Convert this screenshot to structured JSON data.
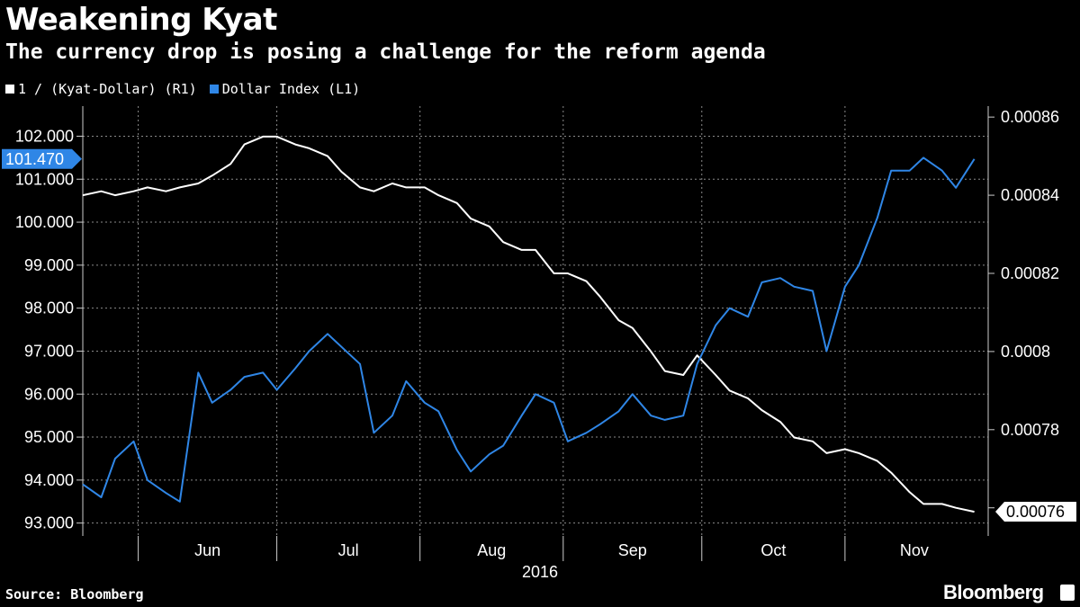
{
  "header": {
    "title": "Weakening Kyat",
    "subtitle": "The currency drop is posing a challenge for the reform agenda"
  },
  "footer": {
    "source": "Source: Bloomberg",
    "brand": "Bloomberg"
  },
  "colors": {
    "background": "#000000",
    "kyat_series": "#ffffff",
    "dollar_series": "#2f86e6",
    "grid": "#777777"
  },
  "chart_data": {
    "type": "line",
    "x_label": "2016",
    "x_axis": {
      "year_label": "2016",
      "month_labels": [
        "Jun",
        "Jul",
        "Aug",
        "Sep",
        "Oct",
        "Nov"
      ],
      "range": [
        "2016-05-20",
        "2016-12-02"
      ]
    },
    "left_axis": {
      "series": "Dollar Index (L1)",
      "ylim": [
        92.7,
        102.7
      ],
      "ticks": [
        "102.000",
        "101.000",
        "100.000",
        "99.000",
        "98.000",
        "97.000",
        "96.000",
        "95.000",
        "94.000",
        "93.000"
      ],
      "last_value_label": "101.470"
    },
    "right_axis": {
      "series": "1 / (Kyat-Dollar) (R1)",
      "ylim": [
        0.0007528,
        0.0008628
      ],
      "ticks": [
        "0.00086",
        "0.00084",
        "0.00082",
        "0.0008",
        "0.00078",
        "0.00076"
      ],
      "last_value_label": "0.00076"
    },
    "legend": [
      {
        "label": "1 / (Kyat-Dollar) (R1)",
        "color": "#ffffff"
      },
      {
        "label": "Dollar Index (L1)",
        "color": "#2f86e6"
      }
    ],
    "series": [
      {
        "name": "1 / (Kyat-Dollar) (R1)",
        "axis": "right",
        "color": "#ffffff",
        "points": [
          [
            "2016-05-20",
            0.00084
          ],
          [
            "2016-05-24",
            0.000841
          ],
          [
            "2016-05-27",
            0.00084
          ],
          [
            "2016-05-31",
            0.000841
          ],
          [
            "2016-06-03",
            0.000842
          ],
          [
            "2016-06-07",
            0.000841
          ],
          [
            "2016-06-10",
            0.000842
          ],
          [
            "2016-06-14",
            0.000843
          ],
          [
            "2016-06-17",
            0.000845
          ],
          [
            "2016-06-21",
            0.000848
          ],
          [
            "2016-06-24",
            0.000853
          ],
          [
            "2016-06-28",
            0.000855
          ],
          [
            "2016-07-01",
            0.000855
          ],
          [
            "2016-07-05",
            0.000853
          ],
          [
            "2016-07-08",
            0.000852
          ],
          [
            "2016-07-12",
            0.00085
          ],
          [
            "2016-07-15",
            0.000846
          ],
          [
            "2016-07-19",
            0.000842
          ],
          [
            "2016-07-22",
            0.000841
          ],
          [
            "2016-07-26",
            0.000843
          ],
          [
            "2016-07-29",
            0.000842
          ],
          [
            "2016-08-02",
            0.000842
          ],
          [
            "2016-08-05",
            0.00084
          ],
          [
            "2016-08-09",
            0.000838
          ],
          [
            "2016-08-12",
            0.000834
          ],
          [
            "2016-08-16",
            0.000832
          ],
          [
            "2016-08-19",
            0.000828
          ],
          [
            "2016-08-23",
            0.000826
          ],
          [
            "2016-08-26",
            0.000826
          ],
          [
            "2016-08-30",
            0.00082
          ],
          [
            "2016-09-02",
            0.00082
          ],
          [
            "2016-09-06",
            0.000818
          ],
          [
            "2016-09-09",
            0.000814
          ],
          [
            "2016-09-13",
            0.000808
          ],
          [
            "2016-09-16",
            0.000806
          ],
          [
            "2016-09-20",
            0.0008
          ],
          [
            "2016-09-23",
            0.000795
          ],
          [
            "2016-09-27",
            0.000794
          ],
          [
            "2016-09-30",
            0.000799
          ],
          [
            "2016-10-04",
            0.000794
          ],
          [
            "2016-10-07",
            0.00079
          ],
          [
            "2016-10-11",
            0.000788
          ],
          [
            "2016-10-14",
            0.000785
          ],
          [
            "2016-10-18",
            0.000782
          ],
          [
            "2016-10-21",
            0.000778
          ],
          [
            "2016-10-25",
            0.000777
          ],
          [
            "2016-10-28",
            0.000774
          ],
          [
            "2016-11-01",
            0.000775
          ],
          [
            "2016-11-04",
            0.000774
          ],
          [
            "2016-11-08",
            0.000772
          ],
          [
            "2016-11-11",
            0.000769
          ],
          [
            "2016-11-15",
            0.000764
          ],
          [
            "2016-11-18",
            0.000761
          ],
          [
            "2016-11-22",
            0.000761
          ],
          [
            "2016-11-25",
            0.00076
          ],
          [
            "2016-11-29",
            0.000759
          ]
        ]
      },
      {
        "name": "Dollar Index (L1)",
        "axis": "left",
        "color": "#2f86e6",
        "points": [
          [
            "2016-05-20",
            93.9
          ],
          [
            "2016-05-24",
            93.6
          ],
          [
            "2016-05-27",
            94.5
          ],
          [
            "2016-05-31",
            94.9
          ],
          [
            "2016-06-03",
            94.0
          ],
          [
            "2016-06-07",
            93.7
          ],
          [
            "2016-06-10",
            93.5
          ],
          [
            "2016-06-14",
            96.5
          ],
          [
            "2016-06-17",
            95.8
          ],
          [
            "2016-06-21",
            96.1
          ],
          [
            "2016-06-24",
            96.4
          ],
          [
            "2016-06-28",
            96.5
          ],
          [
            "2016-07-01",
            96.1
          ],
          [
            "2016-07-05",
            96.6
          ],
          [
            "2016-07-08",
            97.0
          ],
          [
            "2016-07-12",
            97.4
          ],
          [
            "2016-07-15",
            97.1
          ],
          [
            "2016-07-19",
            96.7
          ],
          [
            "2016-07-22",
            95.1
          ],
          [
            "2016-07-26",
            95.5
          ],
          [
            "2016-07-29",
            96.3
          ],
          [
            "2016-08-02",
            95.8
          ],
          [
            "2016-08-05",
            95.6
          ],
          [
            "2016-08-09",
            94.7
          ],
          [
            "2016-08-12",
            94.2
          ],
          [
            "2016-08-16",
            94.6
          ],
          [
            "2016-08-19",
            94.8
          ],
          [
            "2016-08-23",
            95.5
          ],
          [
            "2016-08-26",
            96.0
          ],
          [
            "2016-08-30",
            95.8
          ],
          [
            "2016-09-02",
            94.9
          ],
          [
            "2016-09-06",
            95.1
          ],
          [
            "2016-09-09",
            95.3
          ],
          [
            "2016-09-13",
            95.6
          ],
          [
            "2016-09-16",
            96.0
          ],
          [
            "2016-09-20",
            95.5
          ],
          [
            "2016-09-23",
            95.4
          ],
          [
            "2016-09-27",
            95.5
          ],
          [
            "2016-09-30",
            96.7
          ],
          [
            "2016-10-04",
            97.6
          ],
          [
            "2016-10-07",
            98.0
          ],
          [
            "2016-10-11",
            97.8
          ],
          [
            "2016-10-14",
            98.6
          ],
          [
            "2016-10-18",
            98.7
          ],
          [
            "2016-10-21",
            98.5
          ],
          [
            "2016-10-25",
            98.4
          ],
          [
            "2016-10-28",
            97.0
          ],
          [
            "2016-11-01",
            98.5
          ],
          [
            "2016-11-04",
            99.0
          ],
          [
            "2016-11-08",
            100.1
          ],
          [
            "2016-11-11",
            101.2
          ],
          [
            "2016-11-15",
            101.2
          ],
          [
            "2016-11-18",
            101.5
          ],
          [
            "2016-11-22",
            101.2
          ],
          [
            "2016-11-25",
            100.8
          ],
          [
            "2016-11-29",
            101.47
          ]
        ]
      }
    ],
    "grid": true
  }
}
